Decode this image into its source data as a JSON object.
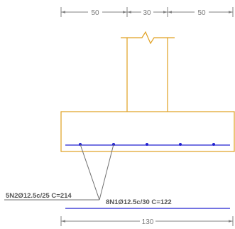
{
  "dimensions": {
    "top_left": "50",
    "top_middle": "30",
    "top_right": "50",
    "bottom_total": "130"
  },
  "rebar_labels": {
    "bar_n2": "5N2Ø12.5c/25  C=214",
    "bar_n1": "8N1Ø12.5c/30  C=122"
  },
  "colors": {
    "concrete_outline": "#e0a020",
    "rebar": "#2020d0",
    "dimension": "#808080",
    "leader": "#707070",
    "label_text": "#555555"
  }
}
